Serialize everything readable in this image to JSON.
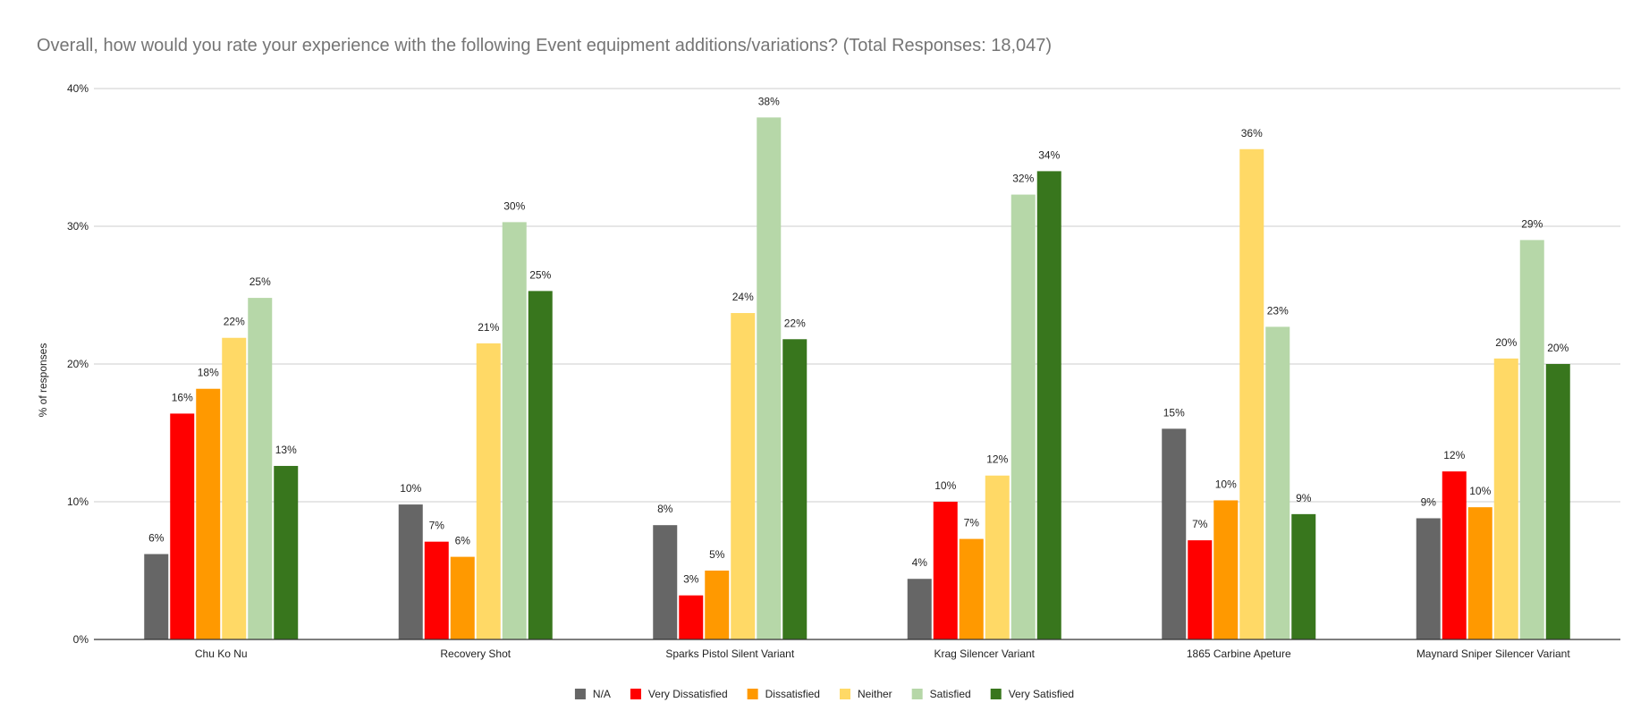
{
  "chart_data": {
    "type": "bar",
    "title": "Overall, how would you rate your experience with the following Event equipment additions/variations? (Total Responses: 18,047)",
    "xlabel": "",
    "ylabel": "% of responses",
    "ylim": [
      0,
      40
    ],
    "yticks": [
      "0%",
      "10%",
      "20%",
      "30%",
      "40%"
    ],
    "ytick_values": [
      0,
      10,
      20,
      30,
      40
    ],
    "grid": true,
    "legend_position": "bottom",
    "categories": [
      "Chu Ko Nu",
      "Recovery Shot",
      "Sparks Pistol Silent Variant",
      "Krag Silencer Variant",
      "1865 Carbine Apeture",
      "Maynard Sniper Silencer Variant"
    ],
    "series": [
      {
        "name": "N/A",
        "color": "#666666",
        "values": [
          6.2,
          9.8,
          8.3,
          4.4,
          15.3,
          8.8
        ],
        "labels": [
          "6%",
          "10%",
          "8%",
          "4%",
          "15%",
          "9%"
        ]
      },
      {
        "name": "Very Dissatisfied",
        "color": "#ff0000",
        "values": [
          16.4,
          7.1,
          3.2,
          10.0,
          7.2,
          12.2
        ],
        "labels": [
          "16%",
          "7%",
          "3%",
          "10%",
          "7%",
          "12%"
        ]
      },
      {
        "name": "Dissatisfied",
        "color": "#ff9900",
        "values": [
          18.2,
          6.0,
          5.0,
          7.3,
          10.1,
          9.6
        ],
        "labels": [
          "18%",
          "6%",
          "5%",
          "7%",
          "10%",
          "10%"
        ]
      },
      {
        "name": "Neither",
        "color": "#ffd966",
        "values": [
          21.9,
          21.5,
          23.7,
          11.9,
          35.6,
          20.4
        ],
        "labels": [
          "22%",
          "21%",
          "24%",
          "12%",
          "36%",
          "20%"
        ]
      },
      {
        "name": "Satisfied",
        "color": "#b6d7a8",
        "values": [
          24.8,
          30.3,
          37.9,
          32.3,
          22.7,
          29.0
        ],
        "labels": [
          "25%",
          "30%",
          "38%",
          "32%",
          "23%",
          "29%"
        ]
      },
      {
        "name": "Very Satisfied",
        "color": "#38761d",
        "values": [
          12.6,
          25.3,
          21.8,
          34.0,
          9.1,
          20.0
        ],
        "labels": [
          "13%",
          "25%",
          "22%",
          "34%",
          "9%",
          "20%"
        ]
      }
    ]
  }
}
